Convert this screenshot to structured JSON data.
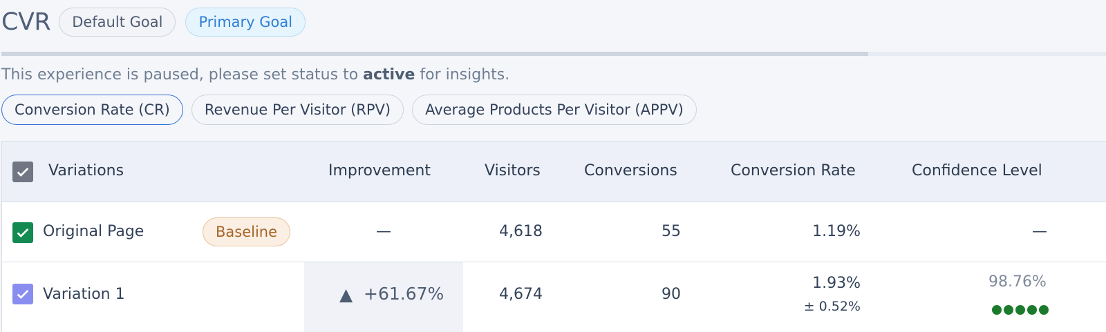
{
  "header": {
    "title": "CVR",
    "goals": [
      "Default Goal",
      "Primary Goal"
    ]
  },
  "progress": {
    "fraction": 0.785
  },
  "notice": {
    "prefix": "This experience is paused, please set status to ",
    "status": "active",
    "suffix": " for insights."
  },
  "metrics": [
    "Conversion Rate (CR)",
    "Revenue Per Visitor (RPV)",
    "Average Products Per Visitor (APPV)"
  ],
  "table": {
    "headers": {
      "variations": "Variations",
      "improvement": "Improvement",
      "visitors": "Visitors",
      "conversions": "Conversions",
      "conversion_rate": "Conversion Rate",
      "confidence": "Confidence Level"
    },
    "rows": [
      {
        "name": "Original Page",
        "badge": "Baseline",
        "improvement": "—",
        "visitors": "4,618",
        "conversions": "55",
        "conversion_rate": "1.19%",
        "confidence": "—"
      },
      {
        "name": "Variation 1",
        "improvement_arrow": "▲",
        "improvement": "+61.67%",
        "visitors": "4,674",
        "conversions": "90",
        "conversion_rate": "1.93%",
        "conversion_rate_margin": "± 0.52%",
        "confidence": "98.76%",
        "confidence_dots": 5
      }
    ]
  },
  "colors": {
    "accent": "#2f6fd6",
    "baseline_checkbox": "#128a52",
    "variation_checkbox": "#8a8df0",
    "confidence_dot": "#1c7a2c"
  }
}
